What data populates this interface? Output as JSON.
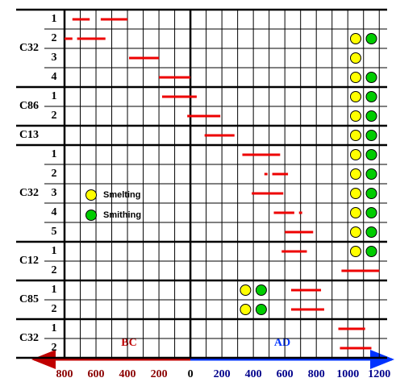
{
  "chart_data": {
    "type": "timeline",
    "xlim": [
      -800,
      1250
    ],
    "xticks": [
      {
        "value": -800,
        "label": "800"
      },
      {
        "value": -600,
        "label": "600"
      },
      {
        "value": -400,
        "label": "400"
      },
      {
        "value": -200,
        "label": "200"
      },
      0,
      200,
      400,
      600,
      800,
      1000,
      1200
    ],
    "xminor": [
      -700,
      -500,
      -300,
      -100,
      100,
      300,
      500,
      700,
      900,
      1100
    ],
    "era_labels": [
      "BC",
      "AD"
    ],
    "legend": [
      {
        "name": "Smelting",
        "color": "#ffff00"
      },
      {
        "name": "Smithing",
        "color": "#00cc00"
      }
    ],
    "bar_color": "#ee0000",
    "groups": [
      {
        "label": "C32",
        "rows": [
          {
            "label": "1",
            "spans": [
              [
                -750,
                -640
              ],
              [
                -570,
                -400
              ]
            ],
            "smelting": null,
            "smithing": null
          },
          {
            "label": "2",
            "spans": [
              [
                -800,
                -750
              ],
              [
                -720,
                -540
              ]
            ],
            "smelting": 1050,
            "smithing": 1150
          },
          {
            "label": "3",
            "spans": [
              [
                -390,
                -200
              ]
            ],
            "smelting": 1050,
            "smithing": null
          },
          {
            "label": "4",
            "spans": [
              [
                -200,
                0
              ]
            ],
            "smelting": 1050,
            "smithing": 1150
          }
        ]
      },
      {
        "label": "C86",
        "rows": [
          {
            "label": "1",
            "spans": [
              [
                -180,
                40
              ]
            ],
            "smelting": 1050,
            "smithing": 1150
          },
          {
            "label": "2",
            "spans": [
              [
                -20,
                190
              ]
            ],
            "smelting": 1050,
            "smithing": 1150
          }
        ]
      },
      {
        "label": "C13",
        "rows": [
          {
            "label": null,
            "spans": [
              [
                90,
                280
              ]
            ],
            "smelting": 1050,
            "smithing": 1150
          }
        ]
      },
      {
        "label": "C32",
        "rows": [
          {
            "label": "1",
            "spans": [
              [
                330,
                570
              ]
            ],
            "smelting": 1050,
            "smithing": 1150
          },
          {
            "label": "2",
            "spans": [
              [
                470,
                490
              ],
              [
                520,
                620
              ]
            ],
            "smelting": 1050,
            "smithing": 1150
          },
          {
            "label": "3",
            "spans": [
              [
                390,
                590
              ]
            ],
            "smelting": 1050,
            "smithing": 1150
          },
          {
            "label": "4",
            "spans": [
              [
                530,
                660
              ],
              [
                690,
                710
              ]
            ],
            "smelting": 1050,
            "smithing": 1150
          },
          {
            "label": "5",
            "spans": [
              [
                600,
                780
              ]
            ],
            "smelting": 1050,
            "smithing": 1150
          }
        ]
      },
      {
        "label": "C12",
        "rows": [
          {
            "label": "1",
            "spans": [
              [
                580,
                740
              ]
            ],
            "smelting": 1050,
            "smithing": 1150
          },
          {
            "label": "2",
            "spans": [
              [
                960,
                1200
              ]
            ],
            "smelting": null,
            "smithing": null
          }
        ]
      },
      {
        "label": "C85",
        "rows": [
          {
            "label": "1",
            "spans": [
              [
                640,
                830
              ]
            ],
            "smelting": 350,
            "smithing": 450
          },
          {
            "label": "2",
            "spans": [
              [
                640,
                850
              ]
            ],
            "smelting": 350,
            "smithing": 450
          }
        ]
      },
      {
        "label": "C32",
        "rows": [
          {
            "label": "1",
            "spans": [
              [
                940,
                1110
              ]
            ],
            "smelting": null,
            "smithing": null
          },
          {
            "label": "2",
            "spans": [
              [
                950,
                1150
              ]
            ],
            "smelting": null,
            "smithing": null
          }
        ]
      }
    ]
  }
}
